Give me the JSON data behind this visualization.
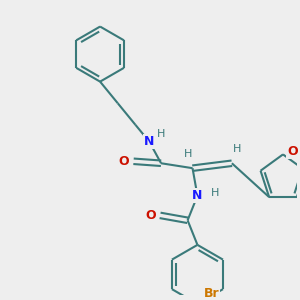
{
  "background_color": "#eeeeee",
  "bond_color": "#3a7a7a",
  "bond_width": 1.5,
  "atom_colors": {
    "N": "#1a1aff",
    "O": "#cc1100",
    "Br": "#cc7700",
    "H": "#3a7a7a"
  },
  "figsize": [
    3.0,
    3.0
  ],
  "dpi": 100,
  "xlim": [
    0,
    300
  ],
  "ylim": [
    0,
    300
  ]
}
